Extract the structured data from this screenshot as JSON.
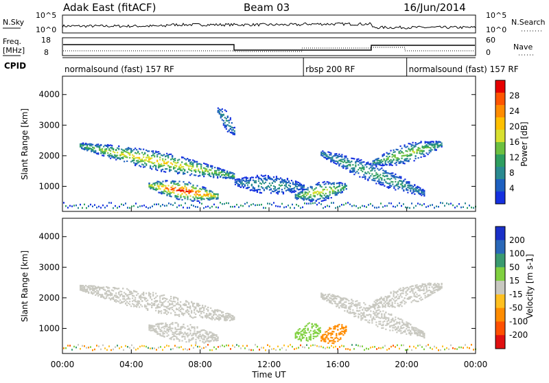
{
  "header": {
    "station": "Adak East (fitACF)",
    "beam": "Beam 03",
    "date": "16/Jun/2014"
  },
  "noise_panel": {
    "left_label": "N.Sky",
    "right_label": "N.Search",
    "left_ticks": [
      "10^5",
      "10^0"
    ],
    "right_ticks": [
      "10^5",
      "10^0"
    ]
  },
  "freq_panel": {
    "left_label_1": "Freq.",
    "left_label_2": "[MHz]",
    "right_label": "Nave",
    "left_ticks": [
      "18",
      "8"
    ],
    "right_ticks": [
      "60",
      "0"
    ]
  },
  "cpid_panel": {
    "label": "CPID",
    "segments": [
      {
        "name": "normalsound (fast) 157 RF",
        "start_hour": 0,
        "end_hour": 14
      },
      {
        "name": "rbsp 200 RF",
        "start_hour": 14,
        "end_hour": 20
      },
      {
        "name": "normalsound (fast) 157 RF",
        "start_hour": 20,
        "end_hour": 24
      }
    ]
  },
  "time_axis": {
    "label": "Time UT",
    "ticks": [
      "00:00",
      "04:00",
      "08:00",
      "12:00",
      "16:00",
      "20:00",
      "00:00"
    ]
  },
  "power_colorbar": {
    "label": "Power [dB]",
    "ticks": [
      "28",
      "24",
      "20",
      "16",
      "12",
      "8",
      "4"
    ],
    "colors": [
      "#e60000",
      "#ff5500",
      "#ff8c00",
      "#ffc000",
      "#d8e030",
      "#6cc040",
      "#2e9e60",
      "#2a8a90",
      "#1e60c0",
      "#1530e0"
    ]
  },
  "velocity_colorbar": {
    "label": "Velocity [m s-1]",
    "ticks": [
      "200",
      "100",
      "50",
      "15",
      "-15",
      "-50",
      "-100",
      "-200"
    ],
    "colors": [
      "#1a30c8",
      "#2a68b8",
      "#3a9a70",
      "#80d040",
      "#c8c8c0",
      "#ffc020",
      "#ff8c00",
      "#ff5000",
      "#e01010"
    ]
  },
  "chart_data": [
    {
      "type": "heatmap",
      "title": "Power",
      "xlabel": "Time UT",
      "ylabel": "Slant Range [km]",
      "xlim": [
        0,
        24
      ],
      "ylim": [
        180,
        4600
      ],
      "y_ticks": [
        1000,
        2000,
        3000,
        4000
      ],
      "color_label": "Power [dB]",
      "color_range": [
        0,
        30
      ],
      "features": [
        {
          "desc": "echo band",
          "start_hour": 1.0,
          "end_hour": 10.0,
          "range_start_km": 2350,
          "range_end_km": 1350,
          "peak_power_db": 20
        },
        {
          "desc": "echo patch",
          "start_hour": 5.0,
          "end_hour": 9.0,
          "range_start_km": 1050,
          "range_end_km": 700,
          "peak_power_db": 28
        },
        {
          "desc": "echo band",
          "start_hour": 10.0,
          "end_hour": 14.0,
          "range_start_km": 1150,
          "range_end_km": 1000,
          "peak_power_db": 10
        },
        {
          "desc": "echo patch",
          "start_hour": 13.5,
          "end_hour": 16.5,
          "range_start_km": 700,
          "range_end_km": 1000,
          "peak_power_db": 18
        },
        {
          "desc": "echo band",
          "start_hour": 15.0,
          "end_hour": 21.0,
          "range_start_km": 2100,
          "range_end_km": 800,
          "peak_power_db": 12
        },
        {
          "desc": "echo band",
          "start_hour": 18.0,
          "end_hour": 22.0,
          "range_start_km": 1800,
          "range_end_km": 2400,
          "peak_power_db": 16
        },
        {
          "desc": "echo patch",
          "start_hour": 9.0,
          "end_hour": 10.0,
          "range_start_km": 3500,
          "range_end_km": 2800,
          "peak_power_db": 10
        }
      ]
    },
    {
      "type": "heatmap",
      "title": "Velocity",
      "xlabel": "Time UT",
      "ylabel": "Slant Range [km]",
      "xlim": [
        0,
        24
      ],
      "ylim": [
        180,
        4600
      ],
      "y_ticks": [
        1000,
        2000,
        3000,
        4000
      ],
      "color_label": "Velocity [m s-1]",
      "color_range": [
        -200,
        200
      ],
      "features": [
        {
          "desc": "echo band",
          "start_hour": 1.0,
          "end_hour": 10.0,
          "range_start_km": 2350,
          "range_end_km": 1350,
          "velocity": 0
        },
        {
          "desc": "echo patch",
          "start_hour": 5.0,
          "end_hour": 9.0,
          "range_start_km": 1050,
          "range_end_km": 700,
          "velocity": -5
        },
        {
          "desc": "echo patch",
          "start_hour": 13.5,
          "end_hour": 15.0,
          "range_start_km": 800,
          "range_end_km": 1000,
          "velocity": 40
        },
        {
          "desc": "echo patch",
          "start_hour": 15.0,
          "end_hour": 16.5,
          "range_start_km": 700,
          "range_end_km": 1000,
          "velocity": -80
        },
        {
          "desc": "echo band",
          "start_hour": 15.0,
          "end_hour": 21.0,
          "range_start_km": 2100,
          "range_end_km": 800,
          "velocity": 0
        },
        {
          "desc": "echo band",
          "start_hour": 18.0,
          "end_hour": 22.0,
          "range_start_km": 1800,
          "range_end_km": 2400,
          "velocity": 0
        }
      ]
    }
  ]
}
